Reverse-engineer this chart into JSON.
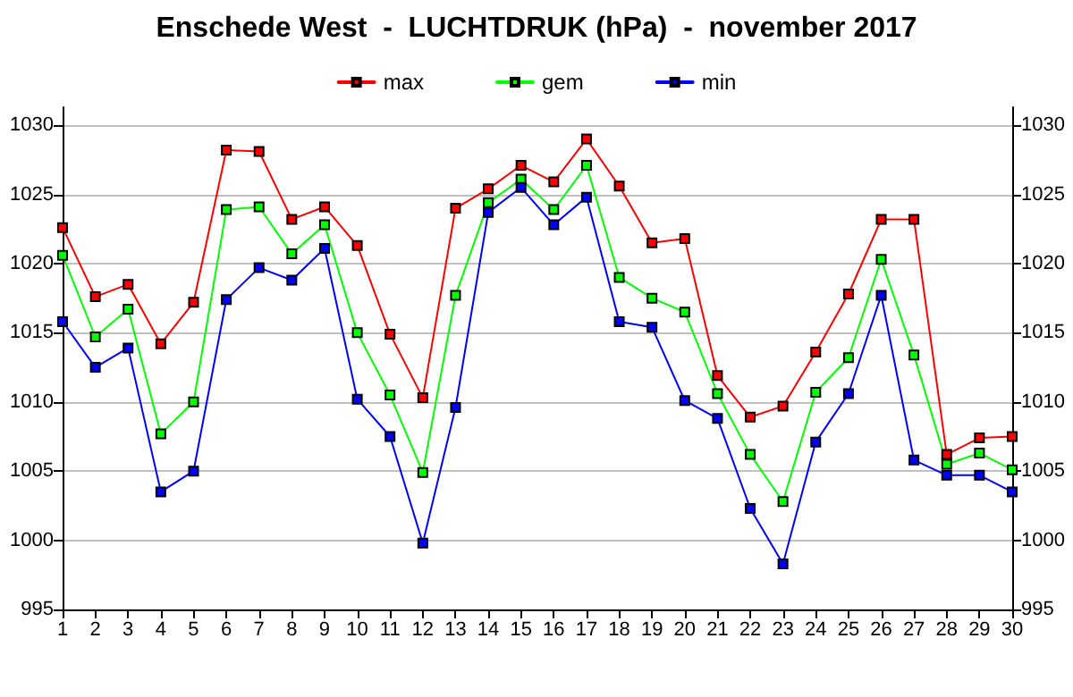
{
  "chart_data": {
    "type": "line",
    "title": "Enschede West  -  LUCHTDRUK (hPa)  -  november 2017",
    "x": [
      1,
      2,
      3,
      4,
      5,
      6,
      7,
      8,
      9,
      10,
      11,
      12,
      13,
      14,
      15,
      16,
      17,
      18,
      19,
      20,
      21,
      22,
      23,
      24,
      25,
      26,
      27,
      28,
      29,
      30
    ],
    "series": [
      {
        "name": "max",
        "color": "#ff0000",
        "values": [
          1022.6,
          1017.6,
          1018.5,
          1014.2,
          1017.2,
          1028.2,
          1028.1,
          1023.2,
          1024.1,
          1021.3,
          1014.9,
          1010.3,
          1024.0,
          1025.4,
          1027.1,
          1025.9,
          1029.0,
          1025.6,
          1021.5,
          1021.8,
          1011.9,
          1008.9,
          1009.7,
          1013.6,
          1017.8,
          1023.2,
          1023.2,
          1006.2,
          1007.4,
          1007.5
        ]
      },
      {
        "name": "gem",
        "color": "#00ff00",
        "values": [
          1020.6,
          1014.7,
          1016.7,
          1007.7,
          1010.0,
          1023.9,
          1024.1,
          1020.7,
          1022.8,
          1015.0,
          1010.5,
          1004.9,
          1017.7,
          1024.4,
          1026.1,
          1023.9,
          1027.1,
          1019.0,
          1017.5,
          1016.5,
          1010.6,
          1006.2,
          1002.8,
          1010.7,
          1013.2,
          1020.3,
          1013.4,
          1005.5,
          1006.3,
          1005.1
        ]
      },
      {
        "name": "min",
        "color": "#0000ff",
        "values": [
          1015.8,
          1012.5,
          1013.9,
          1003.5,
          1005.0,
          1017.4,
          1019.7,
          1018.8,
          1021.1,
          1010.2,
          1007.5,
          999.8,
          1009.6,
          1023.7,
          1025.5,
          1022.8,
          1024.8,
          1015.8,
          1015.4,
          1010.1,
          1008.8,
          1002.3,
          998.3,
          1007.1,
          1010.6,
          1017.7,
          1005.8,
          1004.7,
          1004.7,
          1003.5
        ]
      }
    ],
    "xlim": [
      1,
      30
    ],
    "xticks": [
      1,
      2,
      3,
      4,
      5,
      6,
      7,
      8,
      9,
      10,
      11,
      12,
      13,
      14,
      15,
      16,
      17,
      18,
      19,
      20,
      21,
      22,
      23,
      24,
      25,
      26,
      27,
      28,
      29,
      30
    ],
    "ylim": [
      995,
      1031.3
    ],
    "yticks": [
      995,
      1000,
      1005,
      1010,
      1015,
      1020,
      1025,
      1030
    ],
    "y2lim": [
      995,
      1031.3
    ],
    "y2ticks": [
      995,
      1000,
      1005,
      1010,
      1015,
      1020,
      1025,
      1030
    ],
    "grid": "y",
    "legend": "top",
    "marker": "square",
    "line_style": "solid"
  }
}
